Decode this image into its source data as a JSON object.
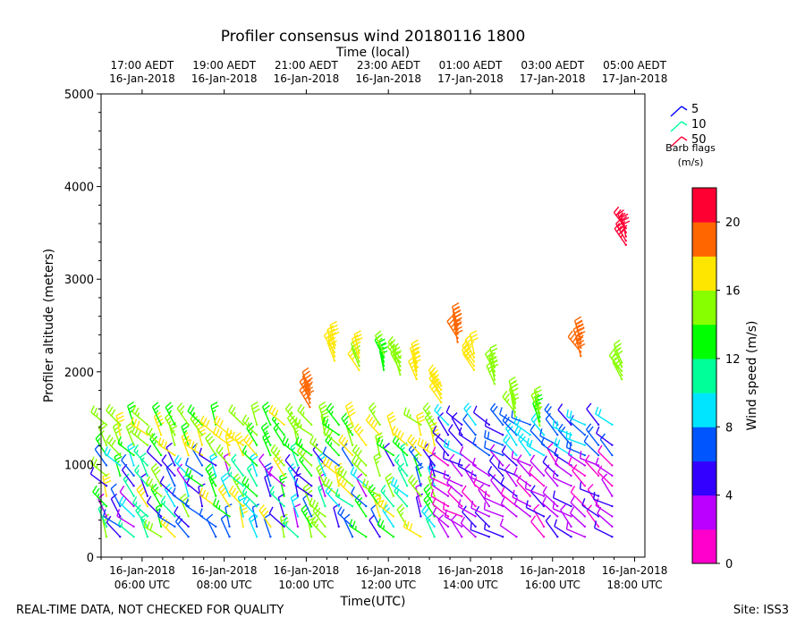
{
  "chart_data": {
    "type": "wind-barb profile",
    "title": "Profiler consensus wind 20180116 1800",
    "xlabel": "Time(UTC)",
    "xlabel_top": "Time (local)",
    "ylabel": "Profiler altitude (meters)",
    "ylim": [
      0,
      5000
    ],
    "yticks": [
      0,
      1000,
      2000,
      3000,
      4000,
      5000
    ],
    "xlim_hours_utc": [
      5.0,
      18.25
    ],
    "xticks_bottom": [
      {
        "h": 6,
        "line1": "16-Jan-2018",
        "line2": "06:00 UTC"
      },
      {
        "h": 8,
        "line1": "16-Jan-2018",
        "line2": "08:00 UTC"
      },
      {
        "h": 10,
        "line1": "16-Jan-2018",
        "line2": "10:00 UTC"
      },
      {
        "h": 12,
        "line1": "16-Jan-2018",
        "line2": "12:00 UTC"
      },
      {
        "h": 14,
        "line1": "16-Jan-2018",
        "line2": "14:00 UTC"
      },
      {
        "h": 16,
        "line1": "16-Jan-2018",
        "line2": "16:00 UTC"
      },
      {
        "h": 18,
        "line1": "16-Jan-2018",
        "line2": "18:00 UTC"
      }
    ],
    "xticks_top": [
      {
        "h": 6,
        "line1": "17:00 AEDT",
        "line2": "16-Jan-2018"
      },
      {
        "h": 8,
        "line1": "19:00 AEDT",
        "line2": "16-Jan-2018"
      },
      {
        "h": 10,
        "line1": "21:00 AEDT",
        "line2": "16-Jan-2018"
      },
      {
        "h": 12,
        "line1": "23:00 AEDT",
        "line2": "16-Jan-2018"
      },
      {
        "h": 14,
        "line1": "01:00 AEDT",
        "line2": "17-Jan-2018"
      },
      {
        "h": 16,
        "line1": "03:00 AEDT",
        "line2": "17-Jan-2018"
      },
      {
        "h": 18,
        "line1": "05:00 AEDT",
        "line2": "17-Jan-2018"
      }
    ],
    "barb_legend": {
      "entries": [
        {
          "label": "5",
          "color": "#0000ff"
        },
        {
          "label": "10",
          "color": "#00ff9f"
        },
        {
          "label": "50",
          "color": "#ff0033"
        }
      ],
      "caption": "Barb flags",
      "units": "(m/s)"
    },
    "colorbar": {
      "label": "Wind speed (m/s)",
      "min": 0,
      "max": 22,
      "ticks": [
        0,
        4,
        8,
        12,
        16,
        20
      ],
      "colors": [
        "#ff00cc",
        "#bb00ff",
        "#3300ff",
        "#0055ff",
        "#00e5ff",
        "#00ff99",
        "#00ff00",
        "#88ff00",
        "#ffe600",
        "#ff6600",
        "#ff0033"
      ]
    },
    "series": [
      {
        "name": "low-level columns (0-1500 m)",
        "count": 38,
        "start_hour": 5.0,
        "step_hours": 0.333,
        "top_m": 1500,
        "level_step_m": 110
      },
      {
        "name": "upper barbs",
        "points": [
          {
            "h": 10.0,
            "alt_m": 1800,
            "speed": 19
          },
          {
            "h": 10.6,
            "alt_m": 2300,
            "speed": 17
          },
          {
            "h": 11.2,
            "alt_m": 2200,
            "speed": 16
          },
          {
            "h": 11.8,
            "alt_m": 2200,
            "speed": 14
          },
          {
            "h": 12.2,
            "alt_m": 2150,
            "speed": 15
          },
          {
            "h": 12.6,
            "alt_m": 2100,
            "speed": 17
          },
          {
            "h": 13.2,
            "alt_m": 1850,
            "speed": 17
          },
          {
            "h": 13.6,
            "alt_m": 2500,
            "speed": 19
          },
          {
            "h": 14.0,
            "alt_m": 2200,
            "speed": 17
          },
          {
            "h": 14.5,
            "alt_m": 2050,
            "speed": 15
          },
          {
            "h": 15.0,
            "alt_m": 1700,
            "speed": 15
          },
          {
            "h": 15.6,
            "alt_m": 1600,
            "speed": 14
          },
          {
            "h": 16.6,
            "alt_m": 2350,
            "speed": 19
          },
          {
            "h": 17.6,
            "alt_m": 2100,
            "speed": 15
          },
          {
            "h": 17.7,
            "alt_m": 3550,
            "speed": 21
          }
        ]
      }
    ]
  },
  "footer": {
    "left": "REAL-TIME DATA, NOT CHECKED FOR QUALITY",
    "right": "Site: ISS3"
  }
}
